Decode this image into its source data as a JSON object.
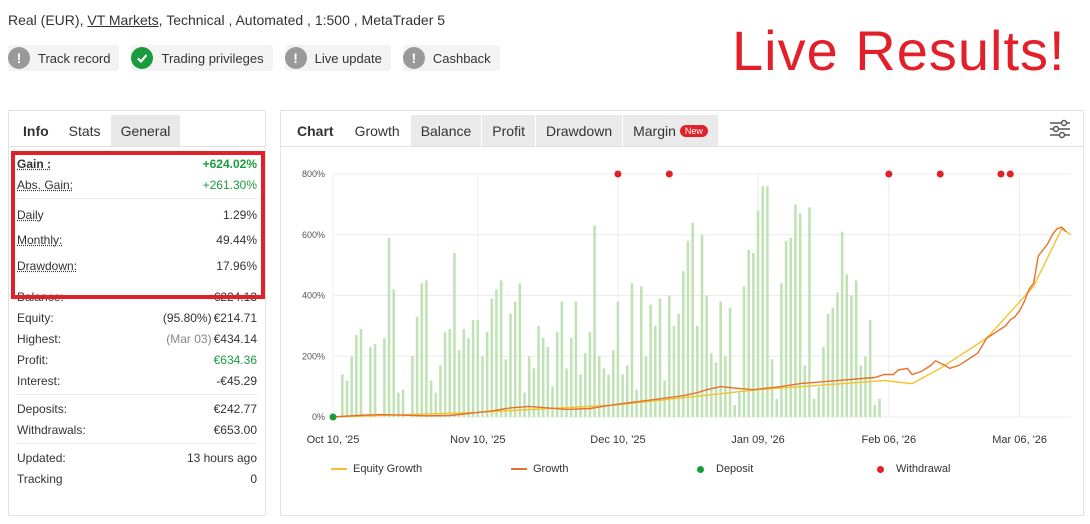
{
  "account": {
    "prefix": "Real (EUR),",
    "broker": "VT Markets",
    "suffix": ", Technical , Automated , 1:500 , MetaTrader 5"
  },
  "badges": [
    {
      "label": "Track record",
      "icon": "exclamation-icon",
      "color": "#999999"
    },
    {
      "label": "Trading privileges",
      "icon": "check-icon",
      "color": "#1a9c3e"
    },
    {
      "label": "Live update",
      "icon": "exclamation-icon",
      "color": "#999999"
    },
    {
      "label": "Cashback",
      "icon": "exclamation-icon",
      "color": "#999999"
    }
  ],
  "overlay_text": "Live Results!",
  "left_tabs": [
    "Info",
    "Stats",
    "General"
  ],
  "stats": {
    "gain": {
      "label": "Gain :",
      "value": "+624.02%"
    },
    "abs_gain": {
      "label": "Abs. Gain:",
      "value": "+261.30%"
    },
    "daily": {
      "label": "Daily",
      "value": "1.29%"
    },
    "monthly": {
      "label": "Monthly:",
      "value": "49.44%"
    },
    "drawdown": {
      "label": "Drawdown:",
      "value": "17.96%"
    },
    "balance": {
      "label": "Balance:",
      "value": "€224.13"
    },
    "equity": {
      "label": "Equity:",
      "note": "(95.80%)",
      "value": "€214.71"
    },
    "highest": {
      "label": "Highest:",
      "note": "(Mar 03)",
      "value": "€434.14"
    },
    "profit": {
      "label": "Profit:",
      "value": "€634.36"
    },
    "interest": {
      "label": "Interest:",
      "value": "-€45.29"
    },
    "deposits": {
      "label": "Deposits:",
      "value": "€242.77"
    },
    "withdrawals": {
      "label": "Withdrawals:",
      "value": "€653.00"
    },
    "updated": {
      "label": "Updated:",
      "value": "13 hours ago"
    },
    "tracking": {
      "label": "Tracking",
      "value": "0"
    }
  },
  "chart_tabs": {
    "chart": "Chart",
    "growth": "Growth",
    "balance": "Balance",
    "profit": "Profit",
    "drawdown": "Drawdown",
    "margin": "Margin",
    "new_badge": "New"
  },
  "colors": {
    "green": "#1a9c3e",
    "red": "#e2202a",
    "bar": "#bfe3b4",
    "growth_line": "#e8702a",
    "equity_line": "#f2c230"
  },
  "chart_data": {
    "type": "line",
    "y_ticks": [
      "800%",
      "600%",
      "400%",
      "200%",
      "0%"
    ],
    "ylim": [
      0,
      800
    ],
    "x_ticks": [
      "Oct 10, '25",
      "Nov 10, '25",
      "Dec 10, '25",
      "Jan 09, '26",
      "Feb 06, '26",
      "Mar 06, '26"
    ],
    "x_tick_days": [
      0,
      31,
      61,
      91,
      119,
      147
    ],
    "xlim_days": [
      0,
      148
    ],
    "grid": true,
    "legend_placement": "bottom",
    "legend": [
      "Equity Growth",
      "Growth",
      "Deposit",
      "Withdrawal"
    ],
    "growth": [
      [
        0,
        0
      ],
      [
        5,
        5
      ],
      [
        10,
        8
      ],
      [
        15,
        6
      ],
      [
        20,
        4
      ],
      [
        25,
        5
      ],
      [
        28,
        10
      ],
      [
        31,
        15
      ],
      [
        34,
        20
      ],
      [
        38,
        30
      ],
      [
        42,
        35
      ],
      [
        46,
        30
      ],
      [
        50,
        25
      ],
      [
        55,
        28
      ],
      [
        60,
        40
      ],
      [
        65,
        50
      ],
      [
        70,
        60
      ],
      [
        75,
        70
      ],
      [
        78,
        80
      ],
      [
        80,
        90
      ],
      [
        83,
        100
      ],
      [
        86,
        95
      ],
      [
        90,
        90
      ],
      [
        93,
        95
      ],
      [
        96,
        100
      ],
      [
        100,
        110
      ],
      [
        104,
        115
      ],
      [
        108,
        120
      ],
      [
        112,
        125
      ],
      [
        116,
        130
      ],
      [
        118,
        140
      ],
      [
        120,
        140
      ],
      [
        121,
        155
      ],
      [
        123,
        160
      ],
      [
        124,
        140
      ],
      [
        126,
        150
      ],
      [
        128,
        170
      ],
      [
        129,
        185
      ],
      [
        131,
        170
      ],
      [
        132,
        160
      ],
      [
        134,
        170
      ],
      [
        136,
        190
      ],
      [
        138,
        210
      ],
      [
        140,
        260
      ],
      [
        142,
        280
      ],
      [
        144,
        300
      ],
      [
        145,
        320
      ],
      [
        146,
        330
      ],
      [
        147,
        350
      ],
      [
        148,
        380
      ],
      [
        149,
        420
      ],
      [
        150,
        440
      ],
      [
        151,
        530
      ],
      [
        152,
        550
      ],
      [
        153,
        570
      ],
      [
        154,
        600
      ],
      [
        155,
        620
      ],
      [
        156,
        625
      ],
      [
        157,
        610
      ]
    ],
    "equity_growth": [
      [
        0,
        0
      ],
      [
        31,
        15
      ],
      [
        61,
        40
      ],
      [
        91,
        90
      ],
      [
        118,
        120
      ],
      [
        124,
        110
      ],
      [
        130,
        160
      ],
      [
        140,
        260
      ],
      [
        150,
        430
      ],
      [
        156,
        620
      ],
      [
        158,
        600
      ]
    ],
    "bars": [
      [
        2,
        140
      ],
      [
        3,
        120
      ],
      [
        4,
        200
      ],
      [
        5,
        270
      ],
      [
        6,
        290
      ],
      [
        8,
        230
      ],
      [
        9,
        240
      ],
      [
        11,
        260
      ],
      [
        12,
        590
      ],
      [
        13,
        420
      ],
      [
        14,
        80
      ],
      [
        15,
        90
      ],
      [
        17,
        200
      ],
      [
        18,
        330
      ],
      [
        19,
        440
      ],
      [
        20,
        450
      ],
      [
        21,
        120
      ],
      [
        22,
        80
      ],
      [
        23,
        170
      ],
      [
        24,
        280
      ],
      [
        25,
        290
      ],
      [
        26,
        540
      ],
      [
        27,
        220
      ],
      [
        28,
        290
      ],
      [
        29,
        260
      ],
      [
        30,
        320
      ],
      [
        31,
        320
      ],
      [
        32,
        200
      ],
      [
        33,
        280
      ],
      [
        34,
        390
      ],
      [
        35,
        420
      ],
      [
        36,
        450
      ],
      [
        37,
        190
      ],
      [
        38,
        340
      ],
      [
        39,
        380
      ],
      [
        40,
        440
      ],
      [
        41,
        80
      ],
      [
        42,
        200
      ],
      [
        43,
        160
      ],
      [
        44,
        300
      ],
      [
        45,
        260
      ],
      [
        46,
        230
      ],
      [
        47,
        100
      ],
      [
        48,
        280
      ],
      [
        49,
        380
      ],
      [
        50,
        160
      ],
      [
        51,
        260
      ],
      [
        52,
        380
      ],
      [
        53,
        140
      ],
      [
        54,
        210
      ],
      [
        55,
        280
      ],
      [
        56,
        630
      ],
      [
        57,
        200
      ],
      [
        58,
        160
      ],
      [
        59,
        140
      ],
      [
        60,
        220
      ],
      [
        61,
        380
      ],
      [
        62,
        140
      ],
      [
        63,
        170
      ],
      [
        64,
        440
      ],
      [
        65,
        90
      ],
      [
        66,
        430
      ],
      [
        67,
        200
      ],
      [
        68,
        370
      ],
      [
        69,
        300
      ],
      [
        70,
        390
      ],
      [
        71,
        120
      ],
      [
        72,
        400
      ],
      [
        73,
        300
      ],
      [
        74,
        340
      ],
      [
        75,
        480
      ],
      [
        76,
        580
      ],
      [
        77,
        640
      ],
      [
        78,
        300
      ],
      [
        79,
        600
      ],
      [
        80,
        400
      ],
      [
        81,
        210
      ],
      [
        82,
        180
      ],
      [
        83,
        380
      ],
      [
        84,
        200
      ],
      [
        85,
        360
      ],
      [
        86,
        40
      ],
      [
        87,
        80
      ],
      [
        88,
        430
      ],
      [
        89,
        550
      ],
      [
        90,
        540
      ],
      [
        91,
        680
      ],
      [
        92,
        760
      ],
      [
        93,
        760
      ],
      [
        94,
        190
      ],
      [
        95,
        60
      ],
      [
        96,
        440
      ],
      [
        97,
        580
      ],
      [
        98,
        590
      ],
      [
        99,
        700
      ],
      [
        100,
        670
      ],
      [
        101,
        170
      ],
      [
        102,
        690
      ],
      [
        103,
        60
      ],
      [
        104,
        100
      ],
      [
        105,
        230
      ],
      [
        106,
        340
      ],
      [
        107,
        360
      ],
      [
        108,
        410
      ],
      [
        109,
        610
      ],
      [
        110,
        470
      ],
      [
        111,
        400
      ],
      [
        112,
        450
      ],
      [
        113,
        170
      ],
      [
        114,
        200
      ],
      [
        115,
        320
      ],
      [
        116,
        40
      ],
      [
        117,
        60
      ]
    ],
    "deposits": [
      [
        0,
        0
      ]
    ],
    "withdrawals": [
      [
        61,
        800
      ],
      [
        72,
        800
      ],
      [
        119,
        800
      ],
      [
        130,
        800
      ],
      [
        143,
        800
      ],
      [
        145,
        800
      ]
    ]
  }
}
